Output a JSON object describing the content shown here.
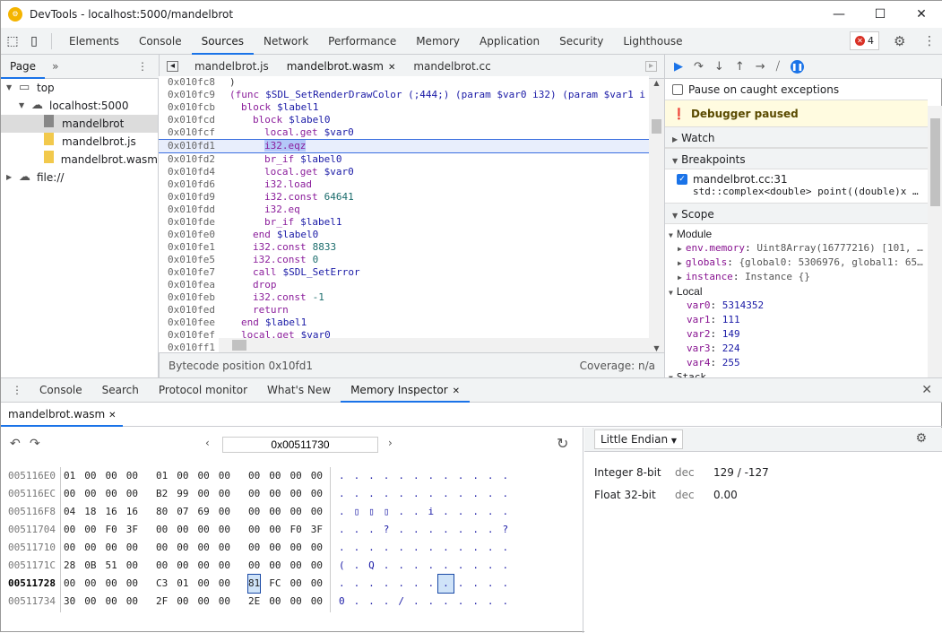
{
  "window": {
    "title": "DevTools - localhost:5000/mandelbrot",
    "minimize": "—",
    "maximize": "☐",
    "close": "✕"
  },
  "main_tabs": [
    "Elements",
    "Console",
    "Sources",
    "Network",
    "Performance",
    "Memory",
    "Application",
    "Security",
    "Lighthouse"
  ],
  "active_main_tab": "Sources",
  "error_count": "4",
  "navigator": {
    "tab": "Page",
    "more": "»",
    "tree": [
      {
        "label": "top",
        "level": 0,
        "icon": "frame-icon"
      },
      {
        "label": "localhost:5000",
        "level": 1,
        "icon": "cloud-icon"
      },
      {
        "label": "mandelbrot",
        "level": 2,
        "icon": "file-icon",
        "selected": true
      },
      {
        "label": "mandelbrot.js",
        "level": 2,
        "icon": "file-icon"
      },
      {
        "label": "mandelbrot.wasm",
        "level": 2,
        "icon": "file-icon"
      },
      {
        "label": "file://",
        "level": 0,
        "icon": "cloud-icon"
      }
    ]
  },
  "editor": {
    "tabs": [
      "mandelbrot.js",
      "mandelbrot.wasm",
      "mandelbrot.cc"
    ],
    "active_tab": "mandelbrot.wasm",
    "lines": [
      {
        "addr": "0x010fc8",
        "indent": 1,
        "op": "",
        "arg": ")"
      },
      {
        "addr": "0x010fc9",
        "indent": 1,
        "op": "(func",
        "arg": "$SDL_SetRenderDrawColor (;444;) (param $var0 i32) (param $var1 i"
      },
      {
        "addr": "0x010fcb",
        "indent": 2,
        "op": "block",
        "arg": "$label1"
      },
      {
        "addr": "0x010fcd",
        "indent": 3,
        "op": "block",
        "arg": "$label0"
      },
      {
        "addr": "0x010fcf",
        "indent": 4,
        "op": "local.get",
        "arg": "$var0"
      },
      {
        "addr": "0x010fd1",
        "indent": 4,
        "op": "i32.eqz",
        "arg": "",
        "current": true
      },
      {
        "addr": "0x010fd2",
        "indent": 4,
        "op": "br_if",
        "arg": "$label0"
      },
      {
        "addr": "0x010fd4",
        "indent": 4,
        "op": "local.get",
        "arg": "$var0"
      },
      {
        "addr": "0x010fd6",
        "indent": 4,
        "op": "i32.load",
        "arg": ""
      },
      {
        "addr": "0x010fd9",
        "indent": 4,
        "op": "i32.const",
        "arg": "64641"
      },
      {
        "addr": "0x010fdd",
        "indent": 4,
        "op": "i32.eq",
        "arg": ""
      },
      {
        "addr": "0x010fde",
        "indent": 4,
        "op": "br_if",
        "arg": "$label1"
      },
      {
        "addr": "0x010fe0",
        "indent": 3,
        "op": "end",
        "arg": "$label0"
      },
      {
        "addr": "0x010fe1",
        "indent": 3,
        "op": "i32.const",
        "arg": "8833"
      },
      {
        "addr": "0x010fe5",
        "indent": 3,
        "op": "i32.const",
        "arg": "0"
      },
      {
        "addr": "0x010fe7",
        "indent": 3,
        "op": "call",
        "arg": "$SDL_SetError"
      },
      {
        "addr": "0x010fea",
        "indent": 3,
        "op": "drop",
        "arg": ""
      },
      {
        "addr": "0x010feb",
        "indent": 3,
        "op": "i32.const",
        "arg": "-1"
      },
      {
        "addr": "0x010fed",
        "indent": 3,
        "op": "return",
        "arg": ""
      },
      {
        "addr": "0x010fee",
        "indent": 2,
        "op": "end",
        "arg": "$label1"
      },
      {
        "addr": "0x010fef",
        "indent": 2,
        "op": "local.get",
        "arg": "$var0"
      },
      {
        "addr": "0x010ff1",
        "indent": 2,
        "op": "",
        "arg": ""
      }
    ],
    "status_left": "Bytecode position 0x10fd1",
    "status_right": "Coverage: n/a"
  },
  "debugger": {
    "pause_caught": "Pause on caught exceptions",
    "paused": "Debugger paused",
    "watch": "Watch",
    "breakpoints": "Breakpoints",
    "breakpoint_file": "mandelbrot.cc:31",
    "breakpoint_code": "std::complex<double> point((double)x …",
    "scope": "Scope",
    "module": "Module",
    "module_items": [
      {
        "k": "env.memory",
        "v": "Uint8Array(16777216) [101, …"
      },
      {
        "k": "globals",
        "v": "{global0: 5306976, global1: 65…"
      },
      {
        "k": "instance",
        "v": "Instance {}"
      }
    ],
    "local": "Local",
    "locals": [
      {
        "k": "var0",
        "v": "5314352"
      },
      {
        "k": "var1",
        "v": "111"
      },
      {
        "k": "var2",
        "v": "149"
      },
      {
        "k": "var3",
        "v": "224"
      },
      {
        "k": "var4",
        "v": "255"
      }
    ],
    "stack": "Stack"
  },
  "drawer": {
    "tabs": [
      "Console",
      "Search",
      "Protocol monitor",
      "What's New",
      "Memory Inspector"
    ],
    "active": "Memory Inspector",
    "file_tab": "mandelbrot.wasm"
  },
  "memory": {
    "address": "0x00511730",
    "endian": "Little Endian",
    "rows": [
      {
        "addr": "005116E0",
        "bytes": [
          "01",
          "00",
          "00",
          "00",
          "01",
          "00",
          "00",
          "00",
          "00",
          "00",
          "00",
          "00"
        ],
        "ascii": [
          ".",
          ".",
          ".",
          ".",
          ".",
          ".",
          ".",
          ".",
          ".",
          ".",
          ".",
          "."
        ]
      },
      {
        "addr": "005116EC",
        "bytes": [
          "00",
          "00",
          "00",
          "00",
          "B2",
          "99",
          "00",
          "00",
          "00",
          "00",
          "00",
          "00"
        ],
        "ascii": [
          ".",
          ".",
          ".",
          ".",
          ".",
          ".",
          ".",
          ".",
          ".",
          ".",
          ".",
          "."
        ]
      },
      {
        "addr": "005116F8",
        "bytes": [
          "04",
          "18",
          "16",
          "16",
          "80",
          "07",
          "69",
          "00",
          "00",
          "00",
          "00",
          "00"
        ],
        "ascii": [
          ".",
          "▯",
          "▯",
          "▯",
          ".",
          ".",
          "i",
          ".",
          ".",
          ".",
          ".",
          "."
        ]
      },
      {
        "addr": "00511704",
        "bytes": [
          "00",
          "00",
          "F0",
          "3F",
          "00",
          "00",
          "00",
          "00",
          "00",
          "00",
          "F0",
          "3F"
        ],
        "ascii": [
          ".",
          ".",
          ".",
          "?",
          ".",
          ".",
          ".",
          ".",
          ".",
          ".",
          ".",
          "?"
        ]
      },
      {
        "addr": "00511710",
        "bytes": [
          "00",
          "00",
          "00",
          "00",
          "00",
          "00",
          "00",
          "00",
          "00",
          "00",
          "00",
          "00"
        ],
        "ascii": [
          ".",
          ".",
          ".",
          ".",
          ".",
          ".",
          ".",
          ".",
          ".",
          ".",
          ".",
          "."
        ]
      },
      {
        "addr": "0051171C",
        "bytes": [
          "28",
          "0B",
          "51",
          "00",
          "00",
          "00",
          "00",
          "00",
          "00",
          "00",
          "00",
          "00"
        ],
        "ascii": [
          "(",
          ".",
          "Q",
          ".",
          ".",
          ".",
          ".",
          ".",
          ".",
          ".",
          ".",
          "."
        ]
      },
      {
        "addr": "00511728",
        "bytes": [
          "00",
          "00",
          "00",
          "00",
          "C3",
          "01",
          "00",
          "00",
          "81",
          "FC",
          "00",
          "00"
        ],
        "ascii": [
          ".",
          ".",
          ".",
          ".",
          ".",
          ".",
          ".",
          ".",
          ".",
          ".",
          ".",
          "."
        ],
        "current": true,
        "sel": 8
      },
      {
        "addr": "00511734",
        "bytes": [
          "30",
          "00",
          "00",
          "00",
          "2F",
          "00",
          "00",
          "00",
          "2E",
          "00",
          "00",
          "00"
        ],
        "ascii": [
          "0",
          ".",
          ".",
          ".",
          "/",
          ".",
          ".",
          ".",
          ".",
          ".",
          ".",
          "."
        ]
      }
    ],
    "values": [
      {
        "type": "Integer 8-bit",
        "mode": "dec",
        "value": "129 / -127"
      },
      {
        "type": "Float 32-bit",
        "mode": "dec",
        "value": "0.00"
      }
    ]
  }
}
